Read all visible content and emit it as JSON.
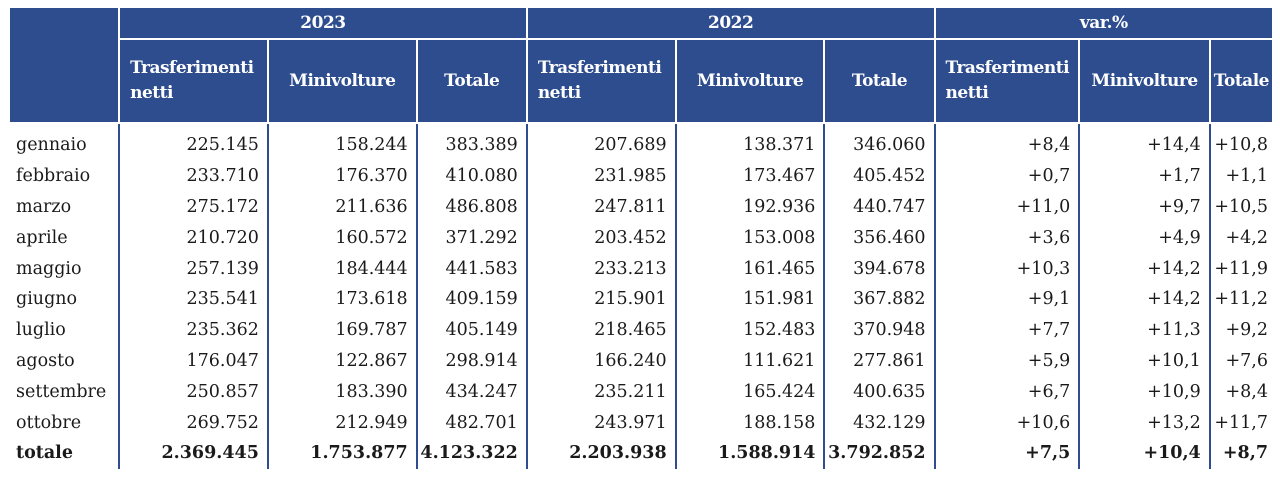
{
  "chart_data": {
    "type": "table",
    "groups": [
      "2023",
      "2022",
      "var.%"
    ],
    "subheaders": [
      "Trasferimenti netti",
      "Minivolture",
      "Totale",
      "Trasferimenti netti",
      "Minivolture",
      "Totale",
      "Trasferimenti netti",
      "Minivolture",
      "Totale"
    ],
    "rows": [
      {
        "month": "gennaio",
        "values": [
          "225.145",
          "158.244",
          "383.389",
          "207.689",
          "138.371",
          "346.060",
          "+8,4",
          "+14,4",
          "+10,8"
        ]
      },
      {
        "month": "febbraio",
        "values": [
          "233.710",
          "176.370",
          "410.080",
          "231.985",
          "173.467",
          "405.452",
          "+0,7",
          "+1,7",
          "+1,1"
        ]
      },
      {
        "month": "marzo",
        "values": [
          "275.172",
          "211.636",
          "486.808",
          "247.811",
          "192.936",
          "440.747",
          "+11,0",
          "+9,7",
          "+10,5"
        ]
      },
      {
        "month": "aprile",
        "values": [
          "210.720",
          "160.572",
          "371.292",
          "203.452",
          "153.008",
          "356.460",
          "+3,6",
          "+4,9",
          "+4,2"
        ]
      },
      {
        "month": "maggio",
        "values": [
          "257.139",
          "184.444",
          "441.583",
          "233.213",
          "161.465",
          "394.678",
          "+10,3",
          "+14,2",
          "+11,9"
        ]
      },
      {
        "month": "giugno",
        "values": [
          "235.541",
          "173.618",
          "409.159",
          "215.901",
          "151.981",
          "367.882",
          "+9,1",
          "+14,2",
          "+11,2"
        ]
      },
      {
        "month": "luglio",
        "values": [
          "235.362",
          "169.787",
          "405.149",
          "218.465",
          "152.483",
          "370.948",
          "+7,7",
          "+11,3",
          "+9,2"
        ]
      },
      {
        "month": "agosto",
        "values": [
          "176.047",
          "122.867",
          "298.914",
          "166.240",
          "111.621",
          "277.861",
          "+5,9",
          "+10,1",
          "+7,6"
        ]
      },
      {
        "month": "settembre",
        "values": [
          "250.857",
          "183.390",
          "434.247",
          "235.211",
          "165.424",
          "400.635",
          "+6,7",
          "+10,9",
          "+8,4"
        ]
      },
      {
        "month": "ottobre",
        "values": [
          "269.752",
          "212.949",
          "482.701",
          "243.971",
          "188.158",
          "432.129",
          "+10,6",
          "+13,2",
          "+11,7"
        ]
      }
    ],
    "total": {
      "month": "totale",
      "values": [
        "2.369.445",
        "1.753.877",
        "4.123.322",
        "2.203.938",
        "1.588.914",
        "3.792.852",
        "+7,5",
        "+10,4",
        "+8,7"
      ]
    }
  },
  "colors": {
    "header_bg": "#2e4d8f",
    "header_text": "#ffffff"
  }
}
